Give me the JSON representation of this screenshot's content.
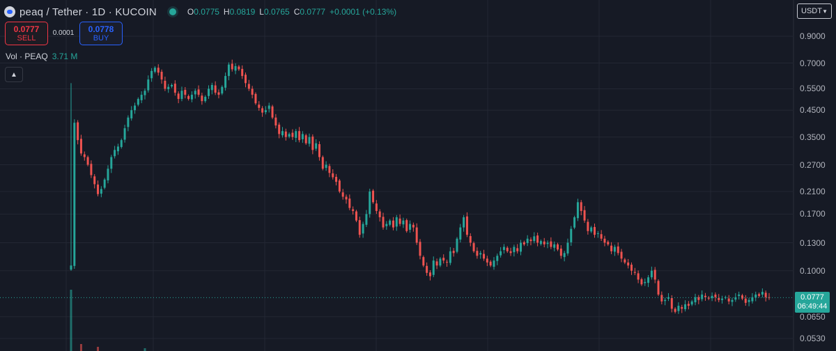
{
  "header": {
    "symbol": "peaq / Tether · 1D · KUCOIN",
    "ohlc": [
      {
        "key": "O",
        "value": "0.0775"
      },
      {
        "key": "H",
        "value": "0.0819"
      },
      {
        "key": "L",
        "value": "0.0765"
      },
      {
        "key": "C",
        "value": "0.0777"
      },
      {
        "key": "",
        "value": "+0.0001 (+0.13%)"
      }
    ]
  },
  "trade": {
    "sell_price": "0.0777",
    "sell_label": "SELL",
    "spread": "0.0001",
    "buy_price": "0.0778",
    "buy_label": "BUY"
  },
  "volume": {
    "label": "Vol · PEAQ",
    "value": "3.71 M"
  },
  "currency": {
    "label": "USDT"
  },
  "last_price": {
    "price": "0.0777",
    "countdown": "06:49:44"
  },
  "colors": {
    "up": "#26a69a",
    "down": "#ef5350",
    "background": "#161a25",
    "grid": "#232733"
  },
  "chart_data": {
    "type": "candlestick",
    "scale": "log",
    "y_ticks": [
      "0.9000",
      "0.7000",
      "0.5500",
      "0.4500",
      "0.3500",
      "0.2700",
      "0.2100",
      "0.1700",
      "0.1300",
      "0.1000",
      "0.0650",
      "0.0530"
    ],
    "grid": true,
    "close_prices": [
      0.105,
      0.4,
      0.34,
      0.3,
      0.29,
      0.27,
      0.245,
      0.225,
      0.205,
      0.215,
      0.235,
      0.26,
      0.29,
      0.31,
      0.32,
      0.34,
      0.38,
      0.42,
      0.45,
      0.47,
      0.5,
      0.52,
      0.54,
      0.6,
      0.65,
      0.67,
      0.64,
      0.6,
      0.55,
      0.56,
      0.57,
      0.53,
      0.5,
      0.54,
      0.52,
      0.5,
      0.52,
      0.54,
      0.52,
      0.49,
      0.51,
      0.55,
      0.57,
      0.53,
      0.52,
      0.56,
      0.62,
      0.69,
      0.66,
      0.68,
      0.66,
      0.62,
      0.58,
      0.55,
      0.52,
      0.48,
      0.46,
      0.44,
      0.45,
      0.47,
      0.42,
      0.39,
      0.36,
      0.37,
      0.35,
      0.36,
      0.35,
      0.37,
      0.34,
      0.36,
      0.33,
      0.35,
      0.31,
      0.33,
      0.29,
      0.26,
      0.27,
      0.25,
      0.24,
      0.23,
      0.21,
      0.2,
      0.195,
      0.18,
      0.175,
      0.16,
      0.14,
      0.155,
      0.17,
      0.21,
      0.19,
      0.175,
      0.165,
      0.15,
      0.155,
      0.16,
      0.15,
      0.165,
      0.155,
      0.16,
      0.145,
      0.155,
      0.15,
      0.13,
      0.115,
      0.105,
      0.098,
      0.095,
      0.11,
      0.105,
      0.112,
      0.11,
      0.108,
      0.12,
      0.118,
      0.135,
      0.15,
      0.165,
      0.14,
      0.13,
      0.12,
      0.115,
      0.118,
      0.112,
      0.108,
      0.105,
      0.11,
      0.115,
      0.12,
      0.125,
      0.12,
      0.118,
      0.125,
      0.12,
      0.13,
      0.128,
      0.135,
      0.132,
      0.138,
      0.13,
      0.132,
      0.128,
      0.13,
      0.125,
      0.128,
      0.122,
      0.115,
      0.118,
      0.13,
      0.148,
      0.165,
      0.19,
      0.175,
      0.16,
      0.145,
      0.15,
      0.14,
      0.142,
      0.135,
      0.13,
      0.128,
      0.12,
      0.125,
      0.118,
      0.112,
      0.108,
      0.105,
      0.1,
      0.098,
      0.092,
      0.088,
      0.09,
      0.094,
      0.1,
      0.092,
      0.08,
      0.075,
      0.076,
      0.078,
      0.07,
      0.068,
      0.072,
      0.07,
      0.073,
      0.072,
      0.075,
      0.078,
      0.076,
      0.08,
      0.078,
      0.077,
      0.079,
      0.078,
      0.076,
      0.077,
      0.078,
      0.075,
      0.076,
      0.078,
      0.08,
      0.077,
      0.074,
      0.076,
      0.078,
      0.08,
      0.079,
      0.082,
      0.078,
      0.0777
    ]
  }
}
